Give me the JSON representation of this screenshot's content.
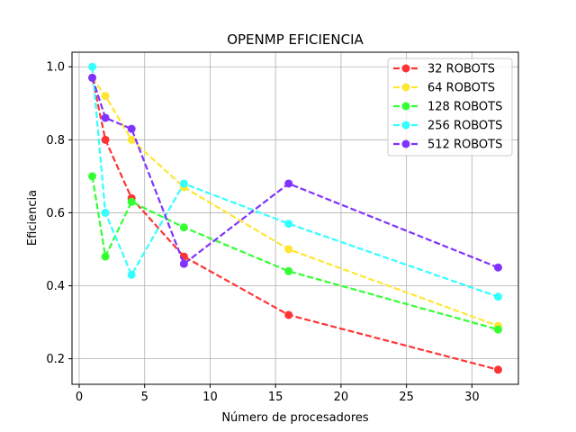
{
  "chart_data": {
    "type": "line",
    "title": "OPENMP EFICIENCIA",
    "xlabel": "Número de procesadores",
    "ylabel": "Eficiencia",
    "xlim": [
      -0.55,
      33.55
    ],
    "ylim": [
      0.13,
      1.04
    ],
    "xticks": [
      0,
      5,
      10,
      15,
      20,
      25,
      30
    ],
    "yticks": [
      0.2,
      0.4,
      0.6,
      0.8,
      1.0
    ],
    "xtick_labels": [
      "0",
      "5",
      "10",
      "15",
      "20",
      "25",
      "30"
    ],
    "ytick_labels": [
      "0.2",
      "0.4",
      "0.6",
      "0.8",
      "1.0"
    ],
    "grid": true,
    "legend_position": "top-right",
    "line_style": "dashed",
    "marker": "circle",
    "x": [
      1,
      2,
      4,
      8,
      16,
      32
    ],
    "series": [
      {
        "name": "32 ROBOTS",
        "color": "#ff3333",
        "values": [
          0.97,
          0.8,
          0.64,
          0.48,
          0.32,
          0.17
        ]
      },
      {
        "name": "64 ROBOTS",
        "color": "#ffe633",
        "values": [
          0.97,
          0.92,
          0.8,
          0.67,
          0.5,
          0.29
        ]
      },
      {
        "name": "128 ROBOTS",
        "color": "#33ff33",
        "values": [
          0.7,
          0.48,
          0.63,
          0.56,
          0.44,
          0.28
        ]
      },
      {
        "name": "256 ROBOTS",
        "color": "#33ffff",
        "values": [
          1.0,
          0.6,
          0.43,
          0.68,
          0.57,
          0.37
        ]
      },
      {
        "name": "512 ROBOTS",
        "color": "#8033ff",
        "values": [
          0.97,
          0.86,
          0.83,
          0.46,
          0.68,
          0.45
        ]
      }
    ]
  }
}
